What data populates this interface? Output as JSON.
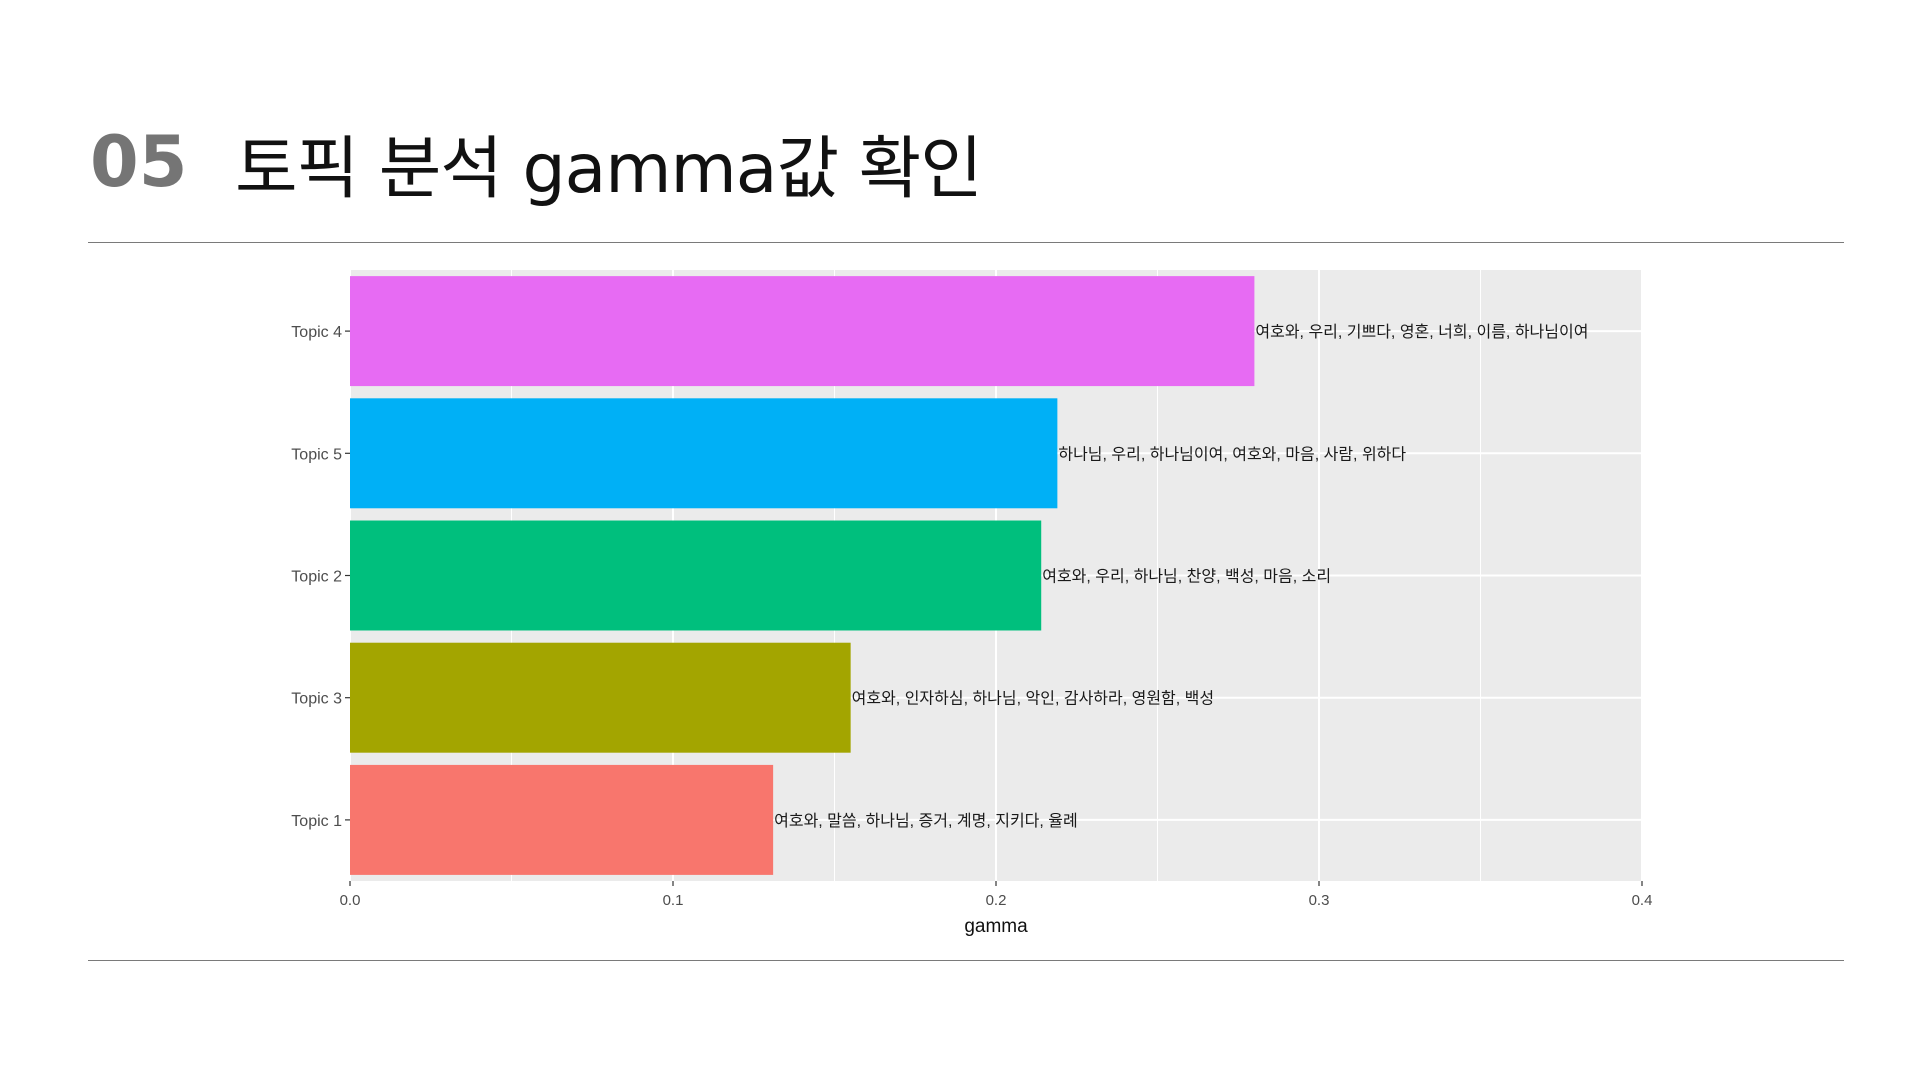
{
  "slide": {
    "number": "05",
    "title": "토픽 분석 gamma값 확인"
  },
  "colors": {
    "panel_background": "#EBEBEB",
    "gridline": "#FFFFFF",
    "tick_text": "#4D4D4D",
    "rule": "#7A7A7A"
  },
  "chart_data": {
    "type": "bar",
    "orientation": "horizontal",
    "xlabel": "gamma",
    "ylabel": "",
    "xlim": [
      0,
      0.4
    ],
    "x_ticks": [
      "0.0",
      "0.1",
      "0.2",
      "0.3",
      "0.4"
    ],
    "grid": true,
    "legend": "none",
    "categories": [
      "Topic 4",
      "Topic 5",
      "Topic 2",
      "Topic 3",
      "Topic 1"
    ],
    "values": [
      0.28,
      0.219,
      0.214,
      0.155,
      0.131
    ],
    "colors": [
      "#E76BF3",
      "#00B0F6",
      "#00BF7D",
      "#A3A500",
      "#F8766D"
    ],
    "labels": [
      "여호와, 우리, 기쁘다, 영혼, 너희, 이름, 하나님이여",
      "하나님, 우리, 하나님이여, 여호와, 마음, 사람, 위하다",
      "여호와, 우리, 하나님, 찬양, 백성, 마음, 소리",
      "여호와, 인자하심, 하나님, 악인, 감사하라, 영원함, 백성",
      "여호와, 말씀, 하나님, 증거, 계명, 지키다, 율례"
    ]
  }
}
